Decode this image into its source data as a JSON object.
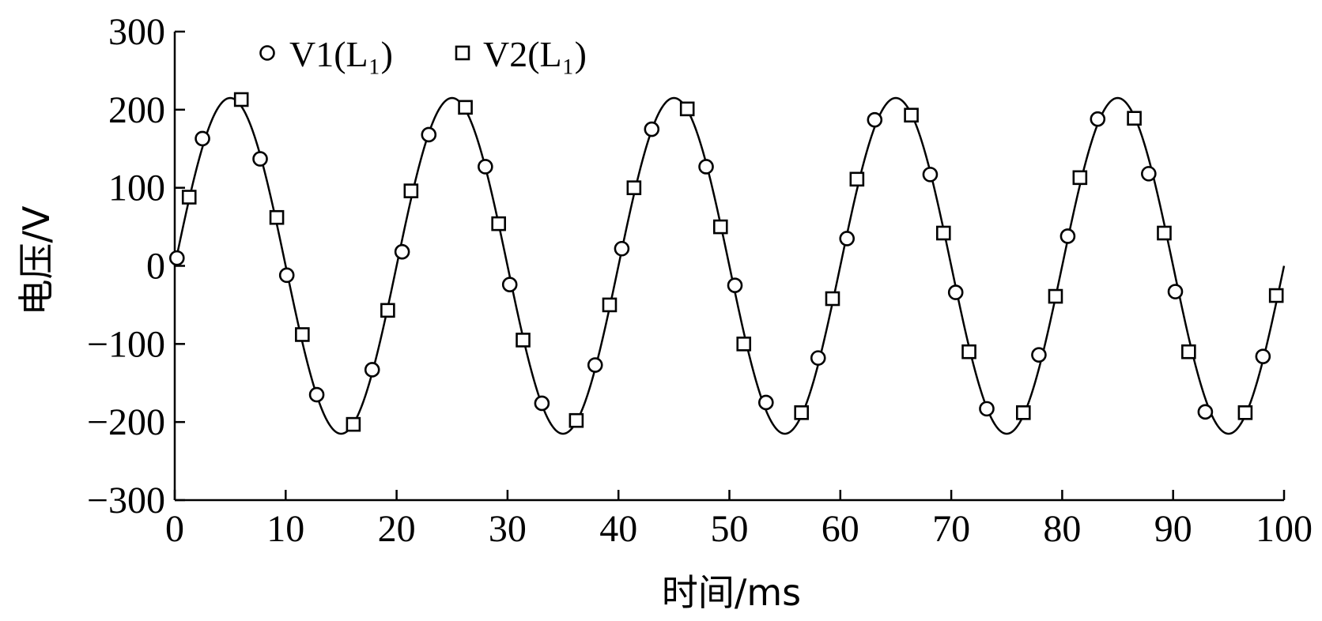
{
  "chart_data": {
    "type": "line",
    "title": "",
    "xlabel": "时间/ms",
    "ylabel": "电压/V",
    "xlim": [
      0,
      100
    ],
    "ylim": [
      -300,
      300
    ],
    "xticks": [
      0,
      10,
      20,
      30,
      40,
      50,
      60,
      70,
      80,
      90,
      100
    ],
    "yticks": [
      300,
      200,
      100,
      0,
      -100,
      -200,
      -300
    ],
    "ytick_labels": [
      "300",
      "200",
      "100",
      "0",
      "−100",
      "−200",
      "−300"
    ],
    "grid": false,
    "legend_position": "top-left",
    "curve": {
      "description": "sinusoid",
      "amplitude": 215,
      "period_ms": 20,
      "x_end": 100
    },
    "series": [
      {
        "name": "V1(L₁)",
        "marker": "circle",
        "points": [
          [
            0.2,
            10
          ],
          [
            2.5,
            163
          ],
          [
            7.7,
            137
          ],
          [
            10.1,
            -12
          ],
          [
            12.8,
            -165
          ],
          [
            17.8,
            -133
          ],
          [
            20.5,
            18
          ],
          [
            22.9,
            168
          ],
          [
            28.0,
            127
          ],
          [
            30.2,
            -24
          ],
          [
            33.1,
            -176
          ],
          [
            37.9,
            -127
          ],
          [
            40.3,
            22
          ],
          [
            43.0,
            175
          ],
          [
            47.9,
            127
          ],
          [
            50.5,
            -25
          ],
          [
            53.3,
            -175
          ],
          [
            58.0,
            -118
          ],
          [
            60.6,
            35
          ],
          [
            63.1,
            187
          ],
          [
            68.1,
            117
          ],
          [
            70.4,
            -34
          ],
          [
            73.2,
            -183
          ],
          [
            77.9,
            -114
          ],
          [
            80.5,
            38
          ],
          [
            83.2,
            188
          ],
          [
            87.8,
            118
          ],
          [
            90.2,
            -33
          ],
          [
            92.9,
            -187
          ],
          [
            98.1,
            -116
          ]
        ]
      },
      {
        "name": "V2(L₁)",
        "marker": "square",
        "points": [
          [
            1.3,
            88
          ],
          [
            6.0,
            213
          ],
          [
            9.2,
            62
          ],
          [
            11.5,
            -88
          ],
          [
            16.1,
            -203
          ],
          [
            19.2,
            -57
          ],
          [
            21.3,
            96
          ],
          [
            26.2,
            203
          ],
          [
            29.2,
            54
          ],
          [
            31.4,
            -95
          ],
          [
            36.2,
            -198
          ],
          [
            39.2,
            -50
          ],
          [
            41.4,
            100
          ],
          [
            46.2,
            201
          ],
          [
            49.2,
            50
          ],
          [
            51.3,
            -100
          ],
          [
            56.5,
            -188
          ],
          [
            59.3,
            -42
          ],
          [
            61.5,
            111
          ],
          [
            66.4,
            193
          ],
          [
            69.3,
            42
          ],
          [
            71.6,
            -110
          ],
          [
            76.5,
            -188
          ],
          [
            79.4,
            -39
          ],
          [
            81.6,
            113
          ],
          [
            86.5,
            189
          ],
          [
            89.2,
            42
          ],
          [
            91.4,
            -110
          ],
          [
            96.5,
            -188
          ],
          [
            99.3,
            -38
          ]
        ]
      }
    ]
  },
  "colors": {
    "ink": "#000000",
    "background": "#ffffff"
  }
}
